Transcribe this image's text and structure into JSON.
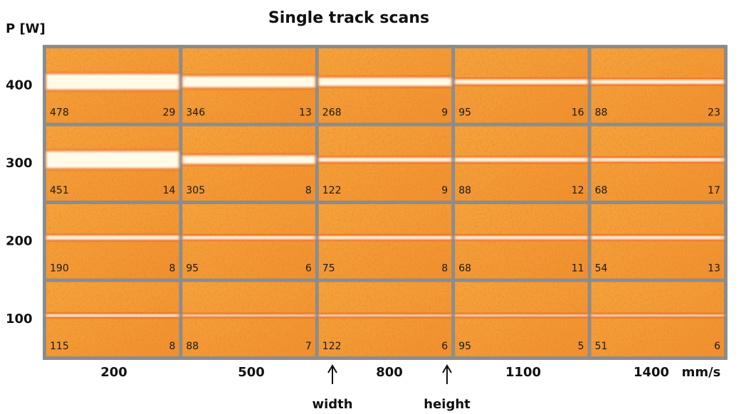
{
  "title": "Single track scans",
  "y_label": "P [W]",
  "x_unit": "mm/s",
  "columns": [
    "200",
    "500",
    "800",
    "1100",
    "1400"
  ],
  "rows": [
    {
      "power": "400",
      "cells": [
        {
          "width": "478",
          "height": "29"
        },
        {
          "width": "346",
          "height": "13"
        },
        {
          "width": "268",
          "height": "9"
        },
        {
          "width": "95",
          "height": "16"
        },
        {
          "width": "88",
          "height": "23"
        }
      ]
    },
    {
      "power": "300",
      "cells": [
        {
          "width": "451",
          "height": "14"
        },
        {
          "width": "305",
          "height": "8"
        },
        {
          "width": "122",
          "height": "9"
        },
        {
          "width": "88",
          "height": "12"
        },
        {
          "width": "68",
          "height": "17"
        }
      ]
    },
    {
      "power": "200",
      "cells": [
        {
          "width": "190",
          "height": "8"
        },
        {
          "width": "95",
          "height": "6"
        },
        {
          "width": "75",
          "height": "8"
        },
        {
          "width": "68",
          "height": "11"
        },
        {
          "width": "54",
          "height": "13"
        }
      ]
    },
    {
      "power": "100",
      "cells": [
        {
          "width": "115",
          "height": "8"
        },
        {
          "width": "88",
          "height": "7"
        },
        {
          "width": "122",
          "height": "6"
        },
        {
          "width": "95",
          "height": "5"
        },
        {
          "width": "51",
          "height": "6"
        }
      ]
    }
  ],
  "annotations": {
    "width": "width",
    "height": "height"
  }
}
